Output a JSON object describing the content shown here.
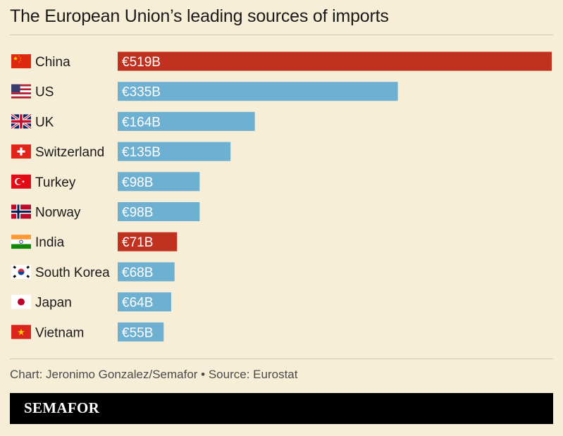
{
  "title": "The European Union’s leading sources of imports",
  "source": "Chart: Jeronimo Gonzalez/Semafor • Source: Eurostat",
  "brand": "SEMAFOR",
  "colors": {
    "highlight": "#c0321f",
    "default": "#6eb0d2"
  },
  "chart_data": {
    "type": "bar",
    "orientation": "horizontal",
    "categories": [
      "China",
      "US",
      "UK",
      "Switzerland",
      "Turkey",
      "Norway",
      "India",
      "South Korea",
      "Japan",
      "Vietnam"
    ],
    "values": [
      519,
      335,
      164,
      135,
      98,
      98,
      71,
      68,
      64,
      55
    ],
    "labels": [
      "€519B",
      "€335B",
      "€164B",
      "€135B",
      "€98B",
      "€98B",
      "€71B",
      "€68B",
      "€64B",
      "€55B"
    ],
    "highlighted": [
      "China",
      "India"
    ],
    "flags": [
      "china-flag-icon",
      "us-flag-icon",
      "uk-flag-icon",
      "switzerland-flag-icon",
      "turkey-flag-icon",
      "norway-flag-icon",
      "india-flag-icon",
      "south-korea-flag-icon",
      "japan-flag-icon",
      "vietnam-flag-icon"
    ],
    "xlim": [
      0,
      519
    ],
    "unit": "€ billions"
  }
}
